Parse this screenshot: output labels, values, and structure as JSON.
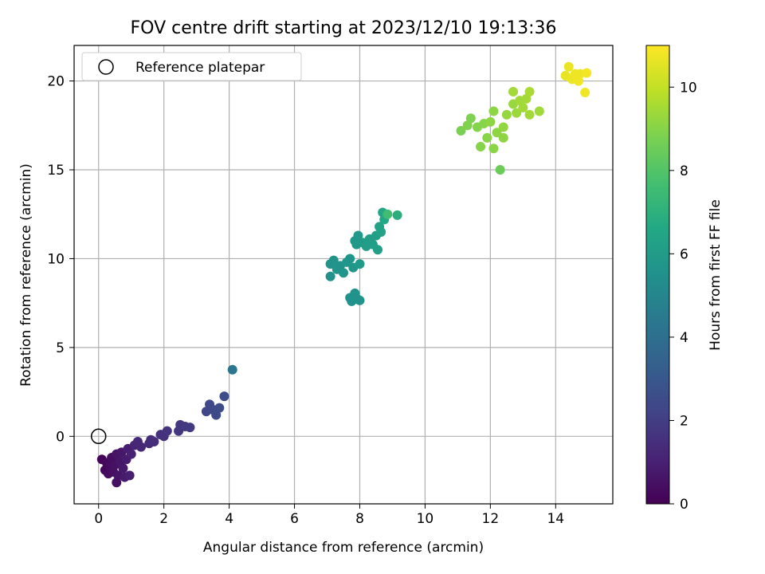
{
  "chart_data": {
    "type": "scatter",
    "title": "FOV centre drift starting at 2023/12/10 19:13:36",
    "xlabel": "Angular distance from reference (arcmin)",
    "ylabel": "Rotation from reference (arcmin)",
    "colorbar_label": "Hours from first FF file",
    "xlim": [
      -0.75,
      15.75
    ],
    "ylim": [
      -3.8,
      22
    ],
    "clim": [
      0,
      11
    ],
    "xticks": [
      0,
      2,
      4,
      6,
      8,
      10,
      12,
      14
    ],
    "yticks": [
      0,
      5,
      10,
      15,
      20
    ],
    "cticks": [
      0,
      2,
      4,
      6,
      8,
      10
    ],
    "grid": true,
    "colormap": "viridis",
    "legend": {
      "placement": "upper-left",
      "entries": [
        {
          "label": "Reference platepar",
          "marker": "open-circle"
        }
      ]
    },
    "reference_point": {
      "x": 0,
      "y": 0
    },
    "points": [
      [
        0.1,
        -1.3,
        0.1
      ],
      [
        0.2,
        -1.9,
        0.2
      ],
      [
        0.25,
        -1.5,
        0.25
      ],
      [
        0.3,
        -2.1,
        0.3
      ],
      [
        0.35,
        -1.7,
        0.35
      ],
      [
        0.4,
        -1.2,
        0.4
      ],
      [
        0.45,
        -2.0,
        0.45
      ],
      [
        0.5,
        -1.6,
        0.5
      ],
      [
        0.55,
        -1.0,
        0.55
      ],
      [
        0.55,
        -2.6,
        0.5
      ],
      [
        0.6,
        -2.2,
        0.6
      ],
      [
        0.65,
        -1.4,
        0.65
      ],
      [
        0.7,
        -0.9,
        0.7
      ],
      [
        0.75,
        -1.8,
        0.75
      ],
      [
        0.8,
        -2.3,
        0.8
      ],
      [
        0.85,
        -1.3,
        0.85
      ],
      [
        0.9,
        -0.7,
        0.9
      ],
      [
        0.95,
        -2.2,
        0.95
      ],
      [
        1.0,
        -1.0,
        1.0
      ],
      [
        1.1,
        -0.5,
        1.1
      ],
      [
        1.2,
        -0.3,
        1.2
      ],
      [
        1.3,
        -0.6,
        1.25
      ],
      [
        1.55,
        -0.4,
        1.35
      ],
      [
        1.6,
        -0.2,
        1.4
      ],
      [
        1.7,
        -0.3,
        1.45
      ],
      [
        1.9,
        0.1,
        1.5
      ],
      [
        2.0,
        0.0,
        1.55
      ],
      [
        2.1,
        0.3,
        1.6
      ],
      [
        2.45,
        0.3,
        1.75
      ],
      [
        2.5,
        0.65,
        1.8
      ],
      [
        2.65,
        0.55,
        1.85
      ],
      [
        2.8,
        0.5,
        1.9
      ],
      [
        3.3,
        1.4,
        2.3
      ],
      [
        3.4,
        1.8,
        2.35
      ],
      [
        3.5,
        1.5,
        2.4
      ],
      [
        3.6,
        1.2,
        2.45
      ],
      [
        3.7,
        1.6,
        2.5
      ],
      [
        3.85,
        2.25,
        2.55
      ],
      [
        4.1,
        3.75,
        4.3
      ],
      [
        7.1,
        9.7,
        5.6
      ],
      [
        7.1,
        9.0,
        5.5
      ],
      [
        7.2,
        9.9,
        5.6
      ],
      [
        7.3,
        9.4,
        5.65
      ],
      [
        7.4,
        9.6,
        5.6
      ],
      [
        7.5,
        9.2,
        5.7
      ],
      [
        7.6,
        9.8,
        5.75
      ],
      [
        7.7,
        10.0,
        5.7
      ],
      [
        7.8,
        9.5,
        5.8
      ],
      [
        7.85,
        11.0,
        5.85
      ],
      [
        7.9,
        10.8,
        5.9
      ],
      [
        7.95,
        11.3,
        5.85
      ],
      [
        8.0,
        9.7,
        5.95
      ],
      [
        8.1,
        10.9,
        6.0
      ],
      [
        8.2,
        10.7,
        6.05
      ],
      [
        8.3,
        11.1,
        6.1
      ],
      [
        8.4,
        10.8,
        6.1
      ],
      [
        8.5,
        11.3,
        6.15
      ],
      [
        8.55,
        10.5,
        6.2
      ],
      [
        8.6,
        11.8,
        6.25
      ],
      [
        8.65,
        11.5,
        6.3
      ],
      [
        8.7,
        12.6,
        6.5
      ],
      [
        8.75,
        12.2,
        6.6
      ],
      [
        8.85,
        12.5,
        7.6
      ],
      [
        9.15,
        12.45,
        6.9
      ],
      [
        7.7,
        7.8,
        5.5
      ],
      [
        7.75,
        7.6,
        5.55
      ],
      [
        7.85,
        8.05,
        5.6
      ],
      [
        7.95,
        7.7,
        5.65
      ],
      [
        8.0,
        7.65,
        5.6
      ],
      [
        11.1,
        17.2,
        8.8
      ],
      [
        11.3,
        17.5,
        8.9
      ],
      [
        11.4,
        17.9,
        8.85
      ],
      [
        11.6,
        17.4,
        8.95
      ],
      [
        11.8,
        17.6,
        9.0
      ],
      [
        11.7,
        16.3,
        9.0
      ],
      [
        11.9,
        16.8,
        9.05
      ],
      [
        12.0,
        17.7,
        9.1
      ],
      [
        12.1,
        18.3,
        9.1
      ],
      [
        12.1,
        16.2,
        9.05
      ],
      [
        12.2,
        17.1,
        9.15
      ],
      [
        12.3,
        15.0,
        8.5
      ],
      [
        12.4,
        17.4,
        9.2
      ],
      [
        12.4,
        16.8,
        9.15
      ],
      [
        12.5,
        18.1,
        9.25
      ],
      [
        12.7,
        18.7,
        9.3
      ],
      [
        12.7,
        19.4,
        9.45
      ],
      [
        12.8,
        18.2,
        9.35
      ],
      [
        12.9,
        18.9,
        9.4
      ],
      [
        13.0,
        18.5,
        9.45
      ],
      [
        13.1,
        19.0,
        9.5
      ],
      [
        13.2,
        19.4,
        9.6
      ],
      [
        13.2,
        18.1,
        9.45
      ],
      [
        13.5,
        18.3,
        9.4
      ],
      [
        14.3,
        20.3,
        10.6
      ],
      [
        14.4,
        20.8,
        10.65
      ],
      [
        14.5,
        20.1,
        10.7
      ],
      [
        14.6,
        20.4,
        10.75
      ],
      [
        14.7,
        20.0,
        10.8
      ],
      [
        14.75,
        20.4,
        10.75
      ],
      [
        14.9,
        19.35,
        10.8
      ],
      [
        14.95,
        20.45,
        10.85
      ]
    ]
  }
}
